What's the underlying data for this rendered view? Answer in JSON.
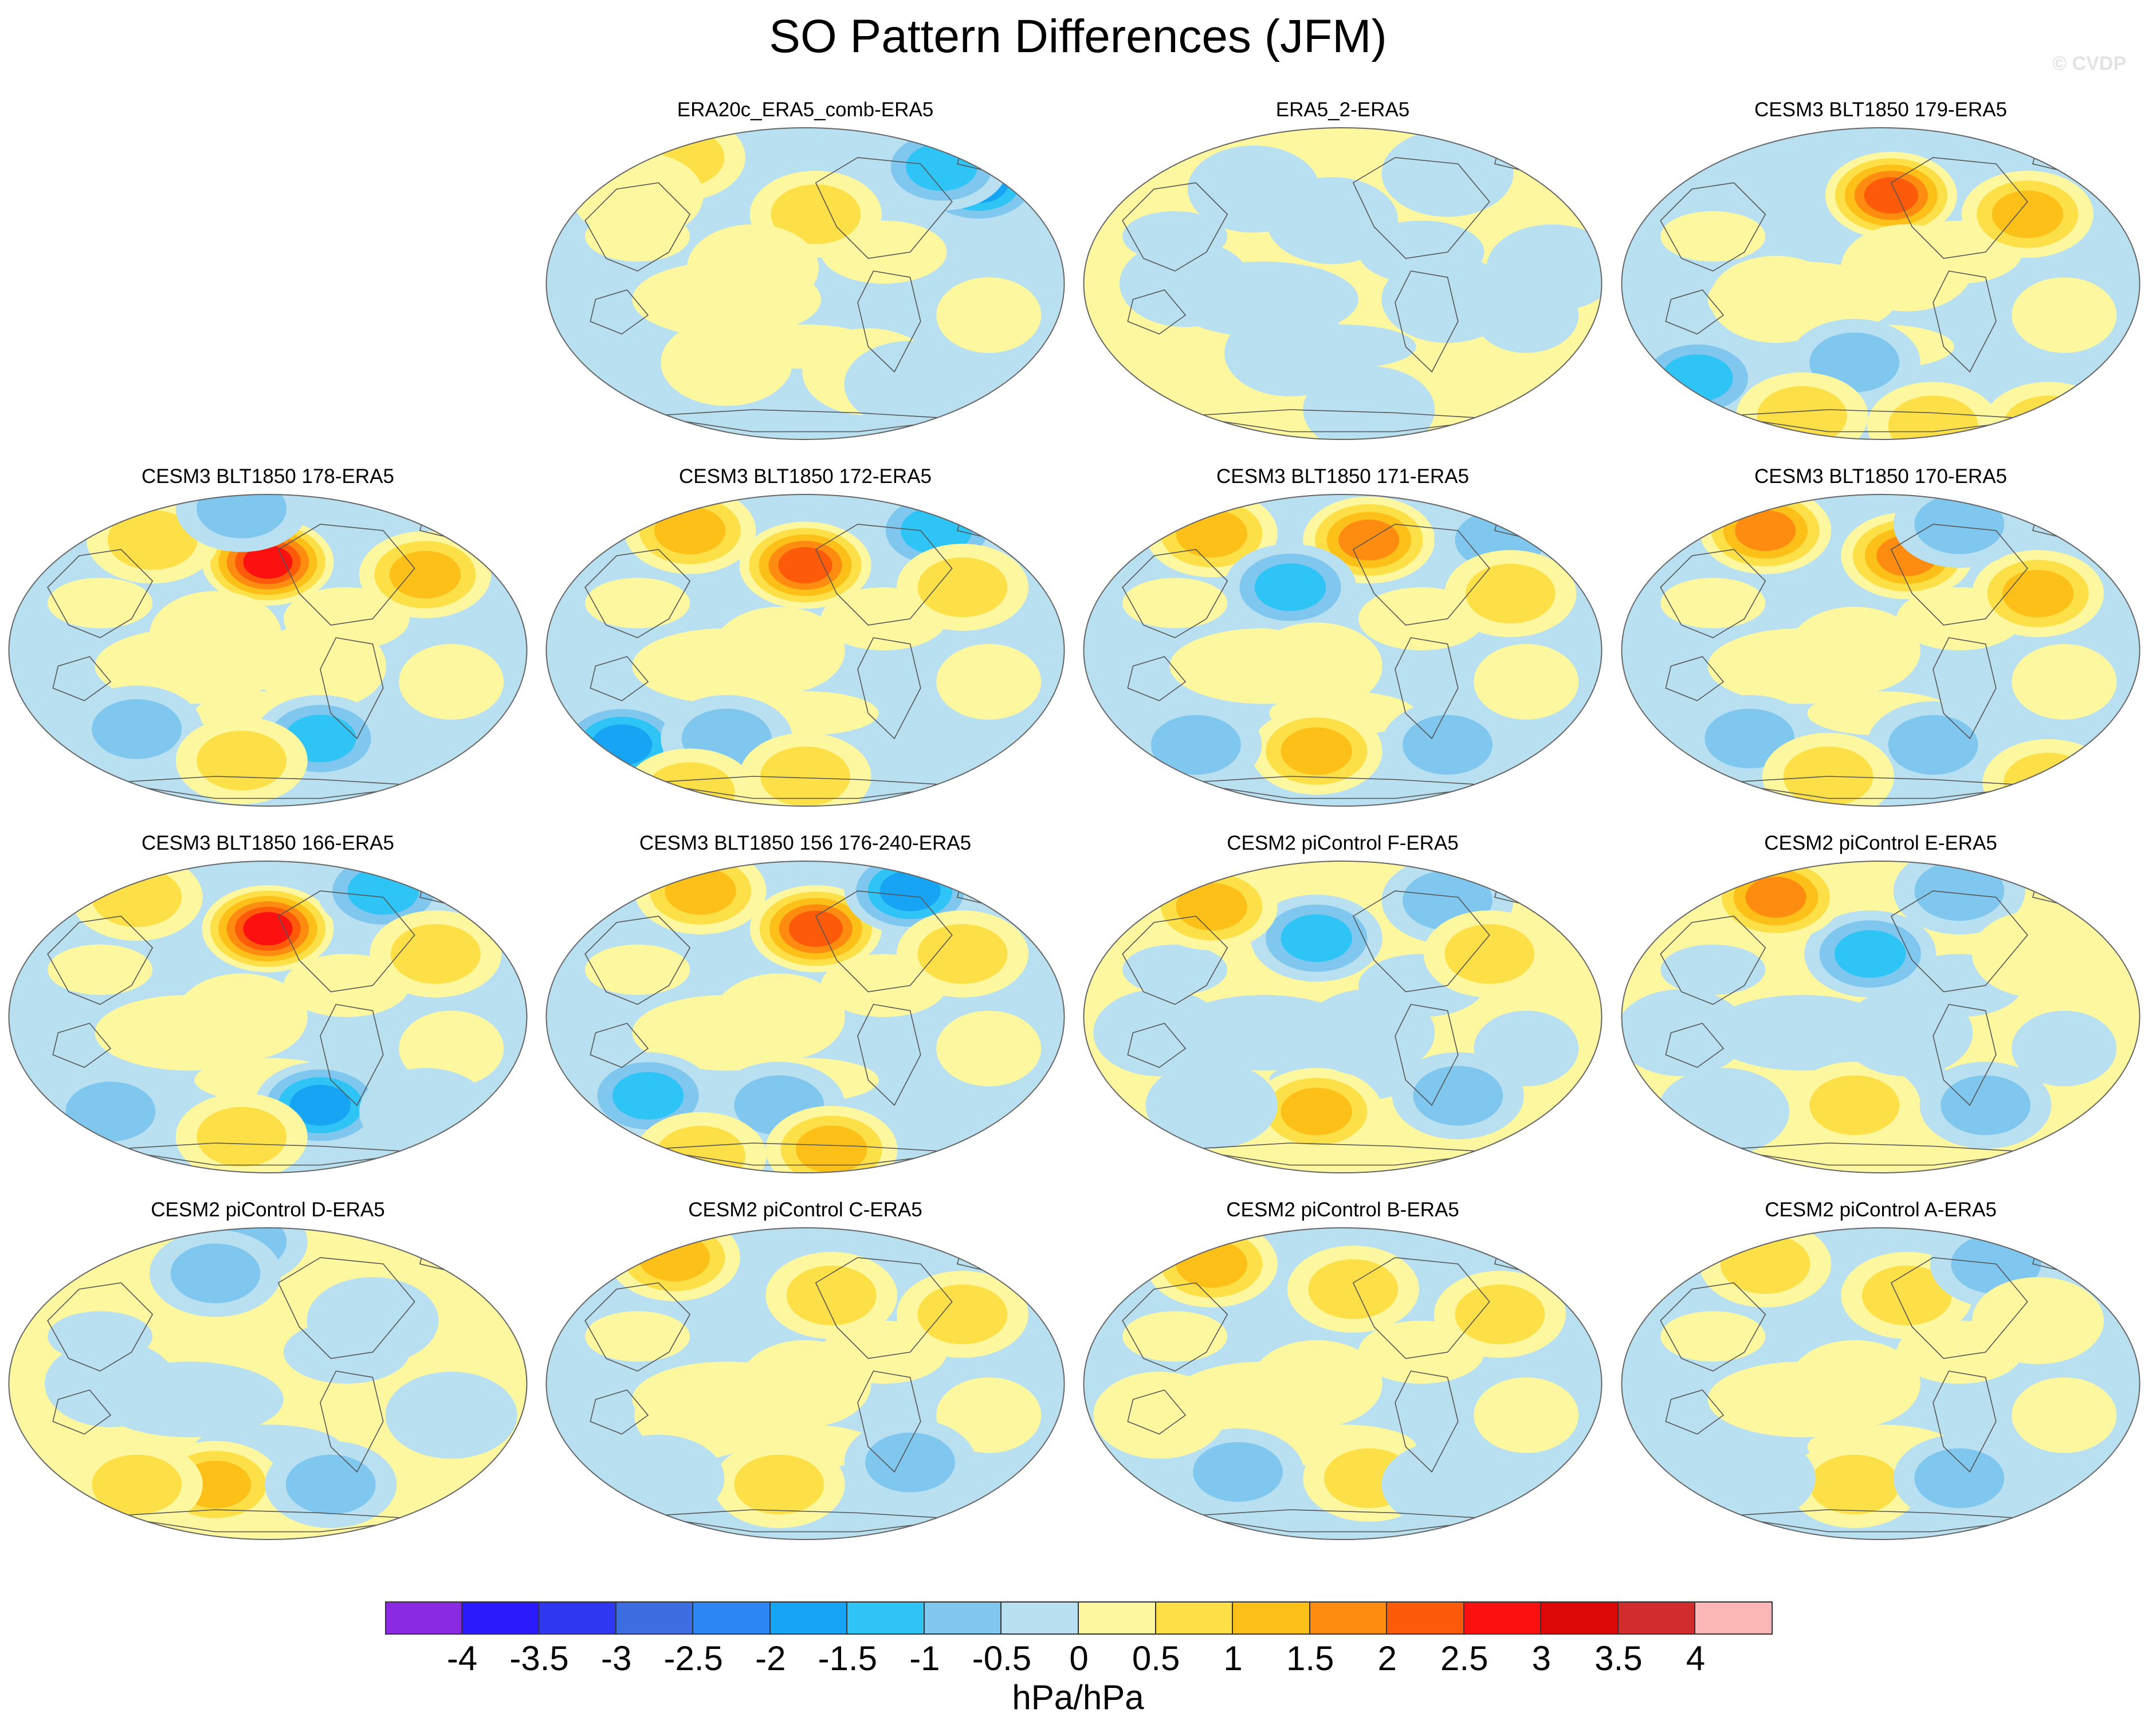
{
  "title": "SO Pattern Differences (JFM)",
  "credit": "© CVDP",
  "panels": [
    {
      "title": "ERA20c_ERA5_comb-ERA5",
      "base": "blue",
      "blobs": [
        [
          0.26,
          0.1,
          1.2
        ],
        [
          0.52,
          0.28,
          0.8
        ],
        [
          0.83,
          0.18,
          -2.2
        ],
        [
          0.76,
          0.13,
          -1.4
        ],
        [
          0.4,
          0.45,
          0.6
        ],
        [
          0.35,
          0.75,
          0.6
        ],
        [
          0.62,
          0.78,
          0.6
        ],
        [
          0.18,
          0.22,
          0.7
        ],
        [
          0.7,
          0.82,
          -0.7
        ]
      ]
    },
    {
      "title": "ERA5_2-ERA5",
      "base": "yellow",
      "blobs": [
        [
          0.48,
          0.3,
          -0.7
        ],
        [
          0.7,
          0.15,
          -0.5
        ],
        [
          0.33,
          0.2,
          -0.6
        ],
        [
          0.7,
          0.55,
          -0.6
        ],
        [
          0.4,
          0.72,
          -0.6
        ],
        [
          0.2,
          0.5,
          -0.5
        ],
        [
          0.9,
          0.45,
          -0.6
        ],
        [
          0.55,
          0.9,
          -0.5
        ]
      ]
    },
    {
      "title": "CESM3 BLT1850 179-ERA5",
      "base": "blue",
      "blobs": [
        [
          0.52,
          0.22,
          2.6
        ],
        [
          0.78,
          0.28,
          1.3
        ],
        [
          0.3,
          0.55,
          0.6
        ],
        [
          0.55,
          0.45,
          0.6
        ],
        [
          0.15,
          0.8,
          -1.5
        ],
        [
          0.45,
          0.75,
          -1.0
        ],
        [
          0.6,
          0.95,
          1.0
        ],
        [
          0.35,
          0.92,
          0.9
        ],
        [
          0.82,
          0.95,
          0.9
        ]
      ]
    },
    {
      "title": "CESM3 BLT1850 178-ERA5",
      "base": "blue",
      "blobs": [
        [
          0.5,
          0.22,
          3.2
        ],
        [
          0.28,
          0.15,
          0.8
        ],
        [
          0.8,
          0.26,
          1.4
        ],
        [
          0.45,
          0.05,
          -0.9
        ],
        [
          0.4,
          0.45,
          0.6
        ],
        [
          0.6,
          0.55,
          0.6
        ],
        [
          0.6,
          0.78,
          -1.4
        ],
        [
          0.25,
          0.75,
          -1.0
        ],
        [
          0.45,
          0.85,
          0.8
        ]
      ]
    },
    {
      "title": "CESM3 BLT1850 172-ERA5",
      "base": "blue",
      "blobs": [
        [
          0.5,
          0.23,
          2.6
        ],
        [
          0.28,
          0.12,
          1.4
        ],
        [
          0.75,
          0.12,
          -1.5
        ],
        [
          0.8,
          0.3,
          0.9
        ],
        [
          0.45,
          0.5,
          0.6
        ],
        [
          0.15,
          0.8,
          -1.8
        ],
        [
          0.35,
          0.78,
          -1.2
        ],
        [
          0.5,
          0.9,
          1.0
        ],
        [
          0.28,
          0.95,
          0.9
        ]
      ]
    },
    {
      "title": "CESM3 BLT1850 171-ERA5",
      "base": "blue",
      "blobs": [
        [
          0.55,
          0.15,
          2.2
        ],
        [
          0.25,
          0.13,
          1.3
        ],
        [
          0.4,
          0.3,
          -1.6
        ],
        [
          0.8,
          0.15,
          -1.2
        ],
        [
          0.82,
          0.32,
          1.0
        ],
        [
          0.45,
          0.55,
          0.6
        ],
        [
          0.45,
          0.82,
          1.5
        ],
        [
          0.22,
          0.8,
          -1.0
        ],
        [
          0.7,
          0.8,
          -0.8
        ]
      ]
    },
    {
      "title": "CESM3 BLT1850 170-ERA5",
      "base": "blue",
      "blobs": [
        [
          0.28,
          0.12,
          1.8
        ],
        [
          0.55,
          0.2,
          1.8
        ],
        [
          0.8,
          0.32,
          1.6
        ],
        [
          0.65,
          0.1,
          -0.8
        ],
        [
          0.45,
          0.5,
          0.6
        ],
        [
          0.6,
          0.8,
          -1.2
        ],
        [
          0.25,
          0.78,
          -0.9
        ],
        [
          0.4,
          0.9,
          0.8
        ],
        [
          0.82,
          0.92,
          0.8
        ]
      ]
    },
    {
      "title": "CESM3 BLT1850 166-ERA5",
      "base": "blue",
      "blobs": [
        [
          0.5,
          0.22,
          3.0
        ],
        [
          0.25,
          0.12,
          1.2
        ],
        [
          0.72,
          0.1,
          -1.6
        ],
        [
          0.82,
          0.3,
          0.8
        ],
        [
          0.45,
          0.5,
          0.6
        ],
        [
          0.6,
          0.78,
          -1.8
        ],
        [
          0.2,
          0.8,
          -1.2
        ],
        [
          0.45,
          0.88,
          0.9
        ],
        [
          0.8,
          0.8,
          -0.6
        ]
      ]
    },
    {
      "title": "CESM3 BLT1850 156 176-240-ERA5",
      "base": "blue",
      "blobs": [
        [
          0.52,
          0.22,
          2.5
        ],
        [
          0.3,
          0.1,
          1.5
        ],
        [
          0.7,
          0.1,
          -1.8
        ],
        [
          0.8,
          0.3,
          0.9
        ],
        [
          0.45,
          0.5,
          0.6
        ],
        [
          0.2,
          0.75,
          -1.6
        ],
        [
          0.45,
          0.78,
          -0.9
        ],
        [
          0.55,
          0.92,
          1.3
        ],
        [
          0.3,
          0.94,
          1.0
        ]
      ]
    },
    {
      "title": "CESM2 piControl F-ERA5",
      "base": "yellow",
      "blobs": [
        [
          0.45,
          0.25,
          -1.5
        ],
        [
          0.25,
          0.15,
          1.4
        ],
        [
          0.7,
          0.13,
          -0.8
        ],
        [
          0.78,
          0.3,
          0.9
        ],
        [
          0.45,
          0.8,
          1.6
        ],
        [
          0.25,
          0.78,
          -0.7
        ],
        [
          0.72,
          0.75,
          -0.8
        ],
        [
          0.55,
          0.55,
          -0.5
        ],
        [
          0.15,
          0.55,
          -0.6
        ]
      ]
    },
    {
      "title": "CESM2 piControl E-ERA5",
      "base": "yellow",
      "blobs": [
        [
          0.48,
          0.3,
          -1.6
        ],
        [
          0.3,
          0.12,
          1.8
        ],
        [
          0.65,
          0.1,
          -0.9
        ],
        [
          0.8,
          0.3,
          0.7
        ],
        [
          0.45,
          0.78,
          1.2
        ],
        [
          0.2,
          0.8,
          -0.7
        ],
        [
          0.7,
          0.78,
          -0.8
        ],
        [
          0.55,
          0.55,
          -0.5
        ],
        [
          0.12,
          0.55,
          -0.6
        ]
      ]
    },
    {
      "title": "CESM2 piControl D-ERA5",
      "base": "yellow",
      "blobs": [
        [
          0.45,
          0.05,
          -0.9
        ],
        [
          0.4,
          0.15,
          -0.8
        ],
        [
          0.7,
          0.3,
          -0.7
        ],
        [
          0.4,
          0.82,
          1.7
        ],
        [
          0.25,
          0.82,
          1.0
        ],
        [
          0.62,
          0.82,
          -1.0
        ],
        [
          0.2,
          0.5,
          -0.6
        ],
        [
          0.85,
          0.6,
          -0.6
        ]
      ]
    },
    {
      "title": "CESM2 piControl C-ERA5",
      "base": "blue",
      "blobs": [
        [
          0.25,
          0.1,
          1.7
        ],
        [
          0.55,
          0.22,
          1.0
        ],
        [
          0.8,
          0.28,
          0.9
        ],
        [
          0.5,
          0.5,
          0.6
        ],
        [
          0.3,
          0.6,
          0.6
        ],
        [
          0.7,
          0.75,
          -0.8
        ],
        [
          0.45,
          0.82,
          0.8
        ],
        [
          0.22,
          0.8,
          -0.7
        ]
      ]
    },
    {
      "title": "CESM2 piControl B-ERA5",
      "base": "blue",
      "blobs": [
        [
          0.25,
          0.12,
          1.7
        ],
        [
          0.52,
          0.2,
          1.0
        ],
        [
          0.8,
          0.28,
          0.8
        ],
        [
          0.45,
          0.5,
          0.6
        ],
        [
          0.55,
          0.8,
          1.0
        ],
        [
          0.3,
          0.78,
          -0.8
        ],
        [
          0.7,
          0.82,
          -0.7
        ],
        [
          0.15,
          0.6,
          0.6
        ]
      ]
    },
    {
      "title": "CESM2 piControl A-ERA5",
      "base": "blue",
      "blobs": [
        [
          0.28,
          0.12,
          1.2
        ],
        [
          0.55,
          0.22,
          1.0
        ],
        [
          0.72,
          0.12,
          -0.8
        ],
        [
          0.8,
          0.3,
          0.7
        ],
        [
          0.45,
          0.5,
          0.6
        ],
        [
          0.45,
          0.82,
          1.2
        ],
        [
          0.25,
          0.8,
          -0.7
        ],
        [
          0.65,
          0.8,
          -0.8
        ]
      ]
    }
  ],
  "colorbar": {
    "colors": [
      "#8a2be2",
      "#2a1afc",
      "#2f38f0",
      "#3d6de0",
      "#2e86f5",
      "#18a4f5",
      "#2ec4f5",
      "#7fc7ef",
      "#b8e0f0",
      "#fdf7a0",
      "#fde047",
      "#fdc018",
      "#fd8c10",
      "#fd5a0a",
      "#fc1010",
      "#dc0808",
      "#d22d2d",
      "#fdb6b6"
    ],
    "ticks": [
      "-4",
      "-3.5",
      "-3",
      "-2.5",
      "-2",
      "-1.5",
      "-1",
      "-0.5",
      "0",
      "0.5",
      "1",
      "1.5",
      "2",
      "2.5",
      "3",
      "3.5",
      "4"
    ],
    "units": "hPa/hPa"
  }
}
